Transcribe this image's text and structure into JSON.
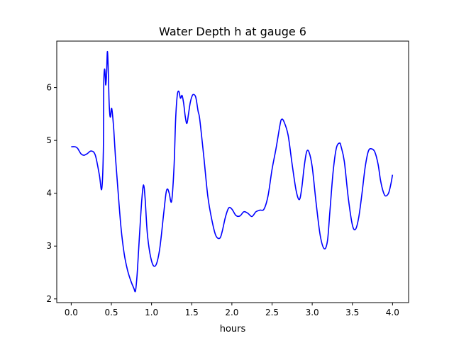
{
  "chart_data": {
    "type": "line",
    "title": "Water Depth h at gauge 6",
    "xlabel": "hours",
    "ylabel": "",
    "xlim": [
      -0.18,
      4.2
    ],
    "ylim": [
      1.93,
      6.88
    ],
    "xticks": [
      0.0,
      0.5,
      1.0,
      1.5,
      2.0,
      2.5,
      3.0,
      3.5,
      4.0
    ],
    "xtick_labels": [
      "0.0",
      "0.5",
      "1.0",
      "1.5",
      "2.0",
      "2.5",
      "3.0",
      "3.5",
      "4.0"
    ],
    "yticks": [
      2,
      3,
      4,
      5,
      6
    ],
    "ytick_labels": [
      "2",
      "3",
      "4",
      "5",
      "6"
    ],
    "grid": false,
    "legend": "none",
    "series": [
      {
        "color": "#0000ff",
        "x": [
          0.0,
          0.05,
          0.08,
          0.12,
          0.16,
          0.2,
          0.25,
          0.3,
          0.35,
          0.38,
          0.4,
          0.405,
          0.415,
          0.425,
          0.43,
          0.44,
          0.45,
          0.46,
          0.47,
          0.48,
          0.49,
          0.5,
          0.51,
          0.53,
          0.55,
          0.58,
          0.62,
          0.66,
          0.7,
          0.74,
          0.78,
          0.8,
          0.82,
          0.84,
          0.86,
          0.88,
          0.9,
          0.92,
          0.95,
          1.0,
          1.05,
          1.1,
          1.15,
          1.18,
          1.2,
          1.22,
          1.25,
          1.28,
          1.3,
          1.32,
          1.34,
          1.36,
          1.38,
          1.4,
          1.42,
          1.44,
          1.46,
          1.48,
          1.5,
          1.52,
          1.55,
          1.58,
          1.6,
          1.65,
          1.7,
          1.75,
          1.8,
          1.85,
          1.88,
          1.92,
          1.96,
          2.0,
          2.05,
          2.1,
          2.15,
          2.2,
          2.25,
          2.3,
          2.35,
          2.4,
          2.45,
          2.5,
          2.55,
          2.6,
          2.62,
          2.65,
          2.7,
          2.75,
          2.8,
          2.84,
          2.87,
          2.9,
          2.93,
          2.96,
          3.0,
          3.05,
          3.1,
          3.15,
          3.19,
          3.22,
          3.26,
          3.3,
          3.34,
          3.36,
          3.4,
          3.45,
          3.5,
          3.54,
          3.58,
          3.62,
          3.66,
          3.7,
          3.74,
          3.78,
          3.82,
          3.85,
          3.88,
          3.91,
          3.95,
          3.98,
          4.0
        ],
        "y": [
          4.88,
          4.88,
          4.85,
          4.75,
          4.72,
          4.75,
          4.8,
          4.72,
          4.35,
          4.08,
          4.8,
          6.05,
          6.35,
          6.18,
          6.05,
          6.25,
          6.68,
          6.4,
          5.8,
          5.5,
          5.45,
          5.6,
          5.55,
          5.2,
          4.7,
          4.1,
          3.35,
          2.85,
          2.55,
          2.35,
          2.2,
          2.15,
          2.45,
          2.95,
          3.45,
          3.9,
          4.16,
          3.9,
          3.2,
          2.72,
          2.63,
          2.93,
          3.6,
          4.0,
          4.08,
          4.0,
          3.85,
          4.5,
          5.4,
          5.85,
          5.93,
          5.8,
          5.85,
          5.7,
          5.45,
          5.32,
          5.5,
          5.7,
          5.82,
          5.87,
          5.82,
          5.55,
          5.4,
          4.7,
          3.95,
          3.5,
          3.2,
          3.15,
          3.28,
          3.55,
          3.72,
          3.7,
          3.58,
          3.57,
          3.65,
          3.62,
          3.56,
          3.65,
          3.68,
          3.7,
          3.95,
          4.45,
          4.85,
          5.3,
          5.4,
          5.35,
          5.1,
          4.55,
          4.05,
          3.88,
          4.1,
          4.5,
          4.78,
          4.78,
          4.5,
          3.8,
          3.2,
          2.95,
          3.1,
          3.65,
          4.4,
          4.85,
          4.95,
          4.88,
          4.6,
          3.9,
          3.4,
          3.32,
          3.55,
          4.0,
          4.5,
          4.8,
          4.84,
          4.78,
          4.55,
          4.25,
          4.05,
          3.95,
          4.0,
          4.18,
          4.35
        ]
      }
    ]
  }
}
